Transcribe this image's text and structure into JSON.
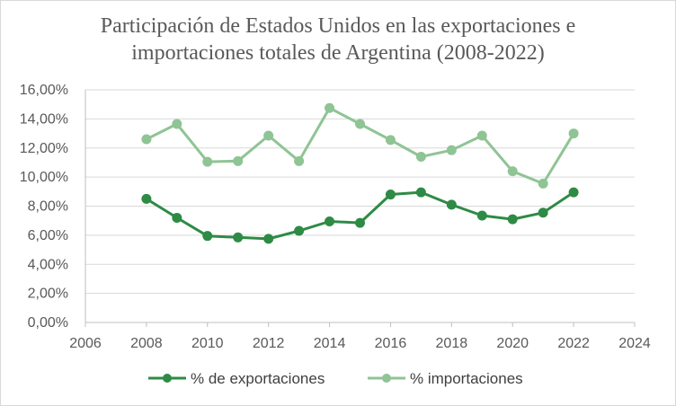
{
  "chart_data": {
    "type": "line",
    "title_line1": "Participación de Estados Unidos en las exportaciones e",
    "title_line2": "importaciones totales de Argentina (2008-2022)",
    "xlabel": "",
    "ylabel": "",
    "xlim": [
      2006,
      2024
    ],
    "ylim": [
      0,
      16
    ],
    "x_ticks": [
      2006,
      2008,
      2010,
      2012,
      2014,
      2016,
      2018,
      2020,
      2022,
      2024
    ],
    "x_tick_labels": [
      "2006",
      "2008",
      "2010",
      "2012",
      "2014",
      "2016",
      "2018",
      "2020",
      "2022",
      "2024"
    ],
    "y_ticks": [
      0,
      2,
      4,
      6,
      8,
      10,
      12,
      14,
      16
    ],
    "y_tick_labels": [
      "0,00%",
      "2,00%",
      "4,00%",
      "6,00%",
      "8,00%",
      "10,00%",
      "12,00%",
      "14,00%",
      "16,00%"
    ],
    "grid": "horizontal",
    "legend_position": "bottom",
    "x": [
      2008,
      2009,
      2010,
      2011,
      2012,
      2013,
      2014,
      2015,
      2016,
      2017,
      2018,
      2019,
      2020,
      2021,
      2022
    ],
    "series": [
      {
        "name": "% de exportaciones",
        "color": "#2e8b45",
        "values": [
          8.5,
          7.2,
          5.95,
          5.85,
          5.75,
          6.3,
          6.95,
          6.85,
          8.8,
          8.95,
          8.1,
          7.35,
          7.1,
          7.55,
          8.95
        ]
      },
      {
        "name": "% importaciones",
        "color": "#8fc495",
        "values": [
          12.6,
          13.65,
          11.05,
          11.1,
          12.85,
          11.1,
          14.75,
          13.65,
          12.55,
          11.4,
          11.85,
          12.85,
          10.4,
          9.55,
          13.0
        ]
      }
    ]
  }
}
